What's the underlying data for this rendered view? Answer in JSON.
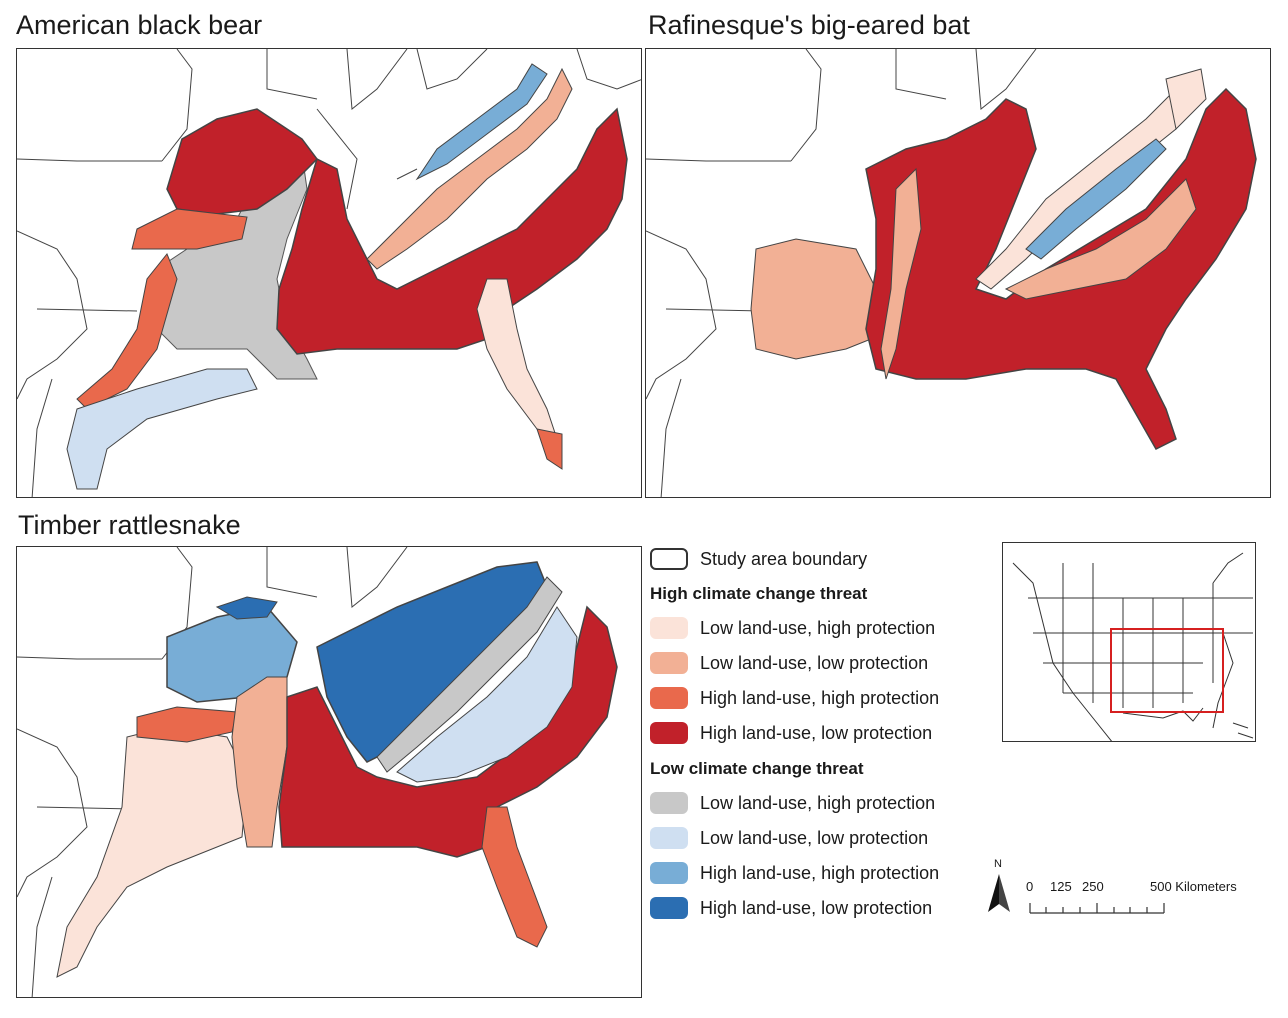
{
  "panels": [
    {
      "title": "American black bear"
    },
    {
      "title": "Rafinesque's big-eared bat"
    },
    {
      "title": "Timber rattlesnake"
    }
  ],
  "legend": {
    "boundary_label": "Study area boundary",
    "high_heading": "High climate change threat",
    "low_heading": "Low climate change threat",
    "high_items": [
      {
        "label": "Low land-use, high protection",
        "color": "#fbe3d9"
      },
      {
        "label": "Low land-use, low protection",
        "color": "#f2b095"
      },
      {
        "label": "High land-use, high protection",
        "color": "#e9694c"
      },
      {
        "label": "High land-use, low protection",
        "color": "#c1212a"
      }
    ],
    "low_items": [
      {
        "label": "Low land-use, high protection",
        "color": "#c8c8c8"
      },
      {
        "label": "Low land-use, low protection",
        "color": "#cfdff1"
      },
      {
        "label": "High land-use, high protection",
        "color": "#78add6"
      },
      {
        "label": "High land-use, low protection",
        "color": "#2b6eb2"
      }
    ]
  },
  "north_arrow": {
    "label": "N"
  },
  "scale_bar": {
    "ticks": [
      "0",
      "125",
      "250",
      "500 Kilometers"
    ]
  },
  "colors": {
    "high_low_high": "#fbe3d9",
    "high_low_low": "#f2b095",
    "high_high_high": "#e9694c",
    "high_high_low": "#c1212a",
    "low_low_high": "#c8c8c8",
    "low_low_low": "#cfdff1",
    "low_high_high": "#78add6",
    "low_high_low": "#2b6eb2",
    "study_outline": "#555555",
    "inset_box": "#d62020"
  }
}
